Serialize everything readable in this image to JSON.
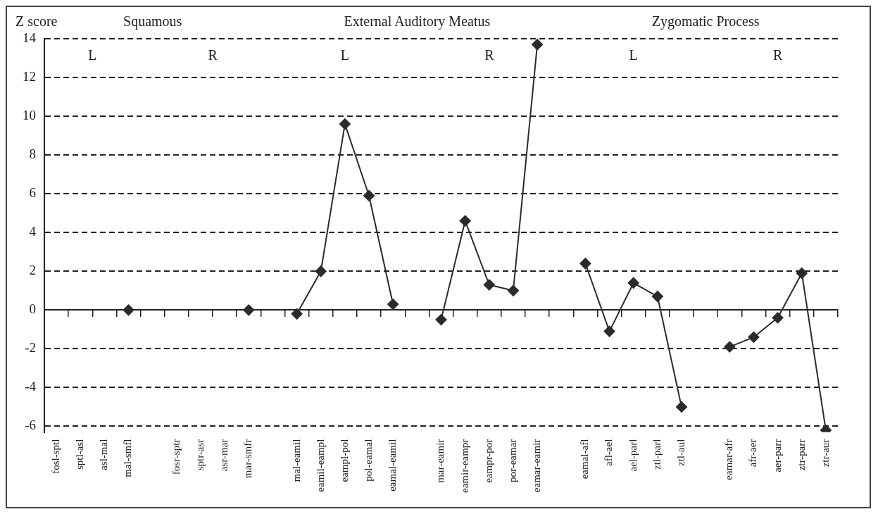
{
  "chart_data": {
    "type": "line",
    "ylabel": "Z score",
    "categories": [
      "fosl-sptl",
      "sptl-asl",
      "asl-mal",
      "mal-smfl",
      null,
      "fosr-sptr",
      "sptr-asr",
      "asr-mar",
      "mar-smfr",
      null,
      "mal-eamil",
      "eamil-eampl",
      "eampl-pol",
      "pol-eamal",
      "eamal-eamil",
      null,
      "mar-eamir",
      "eamir-eampr",
      "eampr-por",
      "por-eamar",
      "eamar-eamir",
      null,
      "eamal-afl",
      "afl-ael",
      "ael-parl",
      "ztl-parl",
      "ztl-aul",
      null,
      "eamar-afr",
      "afr-aer",
      "aer-parr",
      "ztr-parr",
      "ztr-aur"
    ],
    "series": [
      {
        "color": "#2b2b2b",
        "values": [
          null,
          null,
          null,
          0,
          null,
          null,
          null,
          null,
          0,
          null,
          -0.2,
          2.0,
          9.6,
          5.9,
          0.3,
          null,
          -0.5,
          4.6,
          1.3,
          1.0,
          13.7,
          null,
          2.4,
          -1.1,
          1.4,
          0.7,
          -5.0,
          null,
          -1.9,
          -1.4,
          -0.4,
          1.9,
          -6.2
        ]
      }
    ],
    "ylim": [
      -6.3,
      14
    ],
    "yticks": [
      -6,
      -4,
      -2,
      0,
      2,
      4,
      6,
      8,
      10,
      12,
      14
    ],
    "grid": "y",
    "legend": false,
    "marker": "diamond",
    "line_style": "solid",
    "annotations": [
      "Squamous",
      "External Auditory Meatus",
      "Zygomatic Process",
      "L",
      "R",
      "L",
      "R",
      "L",
      "R"
    ]
  }
}
